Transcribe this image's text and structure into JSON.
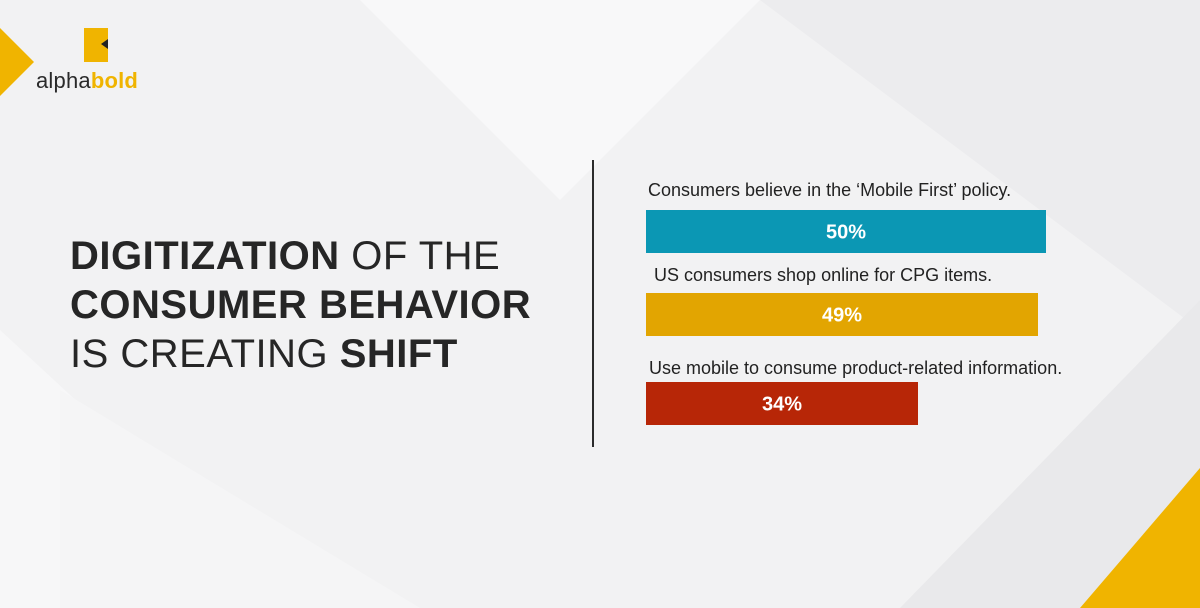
{
  "brand": {
    "name_part1": "alpha",
    "name_part2": "bold",
    "accent": "#f0b400"
  },
  "headline": {
    "line1_bold": "DIGITIZATION",
    "line1_rest": " OF THE",
    "line2_bold": "CONSUMER BEHAVIOR",
    "line3_rest": "IS CREATING ",
    "line3_bold": "SHIFT"
  },
  "chart_data": {
    "type": "bar",
    "orientation": "horizontal",
    "xlim": [
      0,
      62
    ],
    "categories": [
      "Consumers believe in the ‘Mobile First’ policy.",
      "US consumers shop online for CPG items.",
      "Use mobile to consume product-related information."
    ],
    "values": [
      50,
      49,
      34
    ],
    "value_labels": [
      "50%",
      "49%",
      "34%"
    ],
    "colors": [
      "#0b97b4",
      "#e2a501",
      "#b72607"
    ],
    "grid": false
  }
}
